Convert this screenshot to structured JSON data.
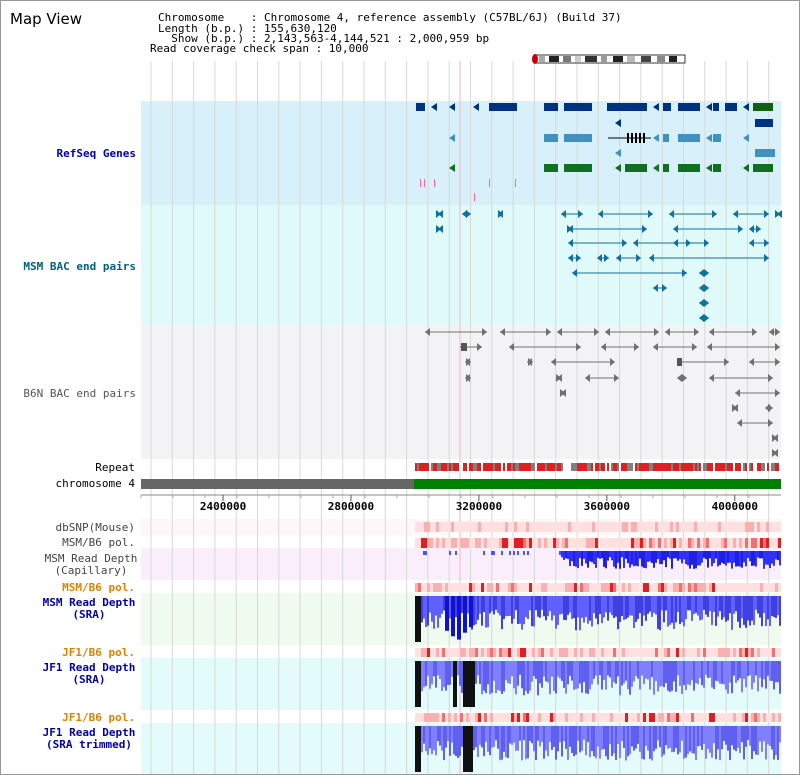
{
  "title": "Map View",
  "info": {
    "chromosome": "Chromosome    : Chromosome 4, reference assembly (C57BL/6J) (Build 37)",
    "length": "Length (b.p.) : 155,630,120",
    "show": "  Show (b.p.) : 2,143,563-4,144,521 : 2,000,959 bp",
    "coverage": "Read coverage check span : 10,000"
  },
  "tracks": {
    "refseq": "RefSeq Genes",
    "msm_bac": "MSM BAC end pairs",
    "b6n_bac": "B6N BAC end pairs",
    "repeat": "Repeat",
    "chromosome": "chromosome 4",
    "dbsnp": "dbSNP(Mouse)",
    "msm_b6_pol_1": "MSM/B6 pol.",
    "msm_depth_cap_1": "MSM Read Depth",
    "msm_depth_cap_2": "(Capillary)",
    "msm_b6_pol_2": "MSM/B6 pol.",
    "msm_depth_sra_1": "MSM Read Depth",
    "msm_depth_sra_2": "(SRA)",
    "jf1_b6_pol_1": "JF1/B6 pol.",
    "jf1_depth_sra_1": "JF1 Read Depth",
    "jf1_depth_sra_2": "(SRA)",
    "jf1_b6_pol_2": "JF1/B6 pol.",
    "jf1_depth_trim_1": "JF1 Read Depth",
    "jf1_depth_trim_2": "(SRA trimmed)"
  },
  "axis": {
    "ticks": [
      "2400000",
      "2800000",
      "3200000",
      "3600000",
      "4000000"
    ],
    "tick_values": [
      2400000,
      2800000,
      3200000,
      3600000,
      4000000
    ],
    "range": [
      2143563,
      4144521
    ]
  },
  "colors": {
    "refseq_label": "#0000aa",
    "msm_label": "#006080",
    "b6n_label": "#555555",
    "pol_label": "#e08000",
    "depth_label": "#0000aa",
    "depth_cap_label": "#444444"
  }
}
